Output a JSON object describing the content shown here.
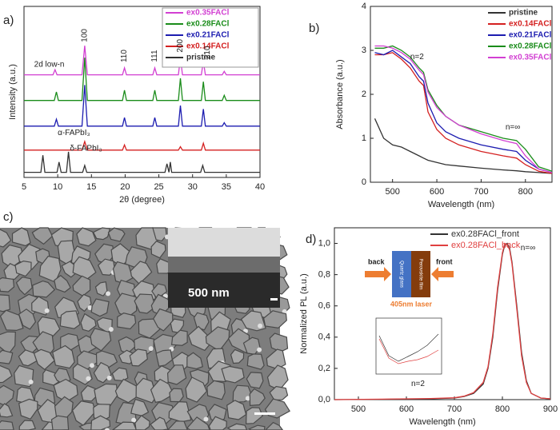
{
  "chart_data": [
    {
      "type": "line",
      "panel_label": "a)",
      "xlabel": "2θ (degree)",
      "ylabel": "Intensity (a.u.)",
      "xlim": [
        5,
        40
      ],
      "xticks": [
        5,
        10,
        15,
        20,
        25,
        30,
        35,
        40
      ],
      "ylim": [
        0,
        10
      ],
      "legend": "upper right",
      "series": [
        {
          "name": "ex0.35FACl",
          "color": "#d23fd2",
          "x": [
            5,
            9.3,
            9.6,
            9.9,
            13.6,
            14,
            14.4,
            19.6,
            19.9,
            20.2,
            24.1,
            24.4,
            24.7,
            27.9,
            28.2,
            28.5,
            31.3,
            31.6,
            31.9,
            34.4,
            34.7,
            35,
            40
          ],
          "values": [
            6,
            6,
            6.3,
            6,
            6,
            7.7,
            6,
            6,
            6.4,
            6,
            6,
            6.4,
            6,
            6,
            7,
            6,
            6,
            6.8,
            6,
            6,
            6.2,
            6,
            6
          ]
        },
        {
          "name": "ex0.28FACl",
          "color": "#1a8c1a",
          "x": [
            5,
            9.5,
            9.8,
            10.1,
            13.6,
            14,
            14.4,
            19.6,
            19.9,
            20.2,
            24.1,
            24.4,
            24.7,
            27.9,
            28.2,
            28.5,
            31.3,
            31.6,
            31.9,
            34.4,
            34.7,
            35,
            40
          ],
          "values": [
            4.5,
            4.5,
            5,
            4.5,
            4.5,
            7,
            4.5,
            4.5,
            5.1,
            4.5,
            4.5,
            5.1,
            4.5,
            4.5,
            5.8,
            4.5,
            4.5,
            5.6,
            4.5,
            4.5,
            4.8,
            4.5,
            4.5
          ]
        },
        {
          "name": "ex0.21FACl",
          "color": "#1c1cb0",
          "x": [
            5,
            9.5,
            9.8,
            10.1,
            13.6,
            14,
            14.4,
            19.6,
            19.9,
            20.2,
            24.1,
            24.4,
            24.7,
            27.9,
            28.2,
            28.5,
            31.3,
            31.6,
            31.9,
            34.4,
            34.7,
            35,
            40
          ],
          "values": [
            3,
            3,
            3.4,
            3,
            3,
            5.4,
            3,
            3,
            3.5,
            3,
            3,
            3.5,
            3,
            3,
            4.2,
            3,
            3,
            4,
            3,
            3,
            3.2,
            3,
            3
          ]
        },
        {
          "name": "ex0.14FACl",
          "color": "#d42020",
          "x": [
            5,
            13.6,
            14,
            14.4,
            19.6,
            19.9,
            20.2,
            27.9,
            28.2,
            28.5,
            31.3,
            31.6,
            31.9,
            40
          ],
          "values": [
            1.6,
            1.6,
            2.1,
            1.6,
            1.6,
            1.9,
            1.6,
            1.6,
            1.8,
            1.6,
            1.6,
            2,
            1.6,
            1.6
          ]
        },
        {
          "name": "pristine",
          "color": "#333333",
          "x": [
            5,
            7.5,
            7.8,
            8.1,
            9.9,
            10.2,
            10.5,
            11.3,
            11.6,
            11.9,
            13.7,
            14,
            14.3,
            25.9,
            26.2,
            26.5,
            26.7,
            26.9,
            31.2,
            31.5,
            31.8,
            40
          ],
          "values": [
            0.3,
            0.3,
            1.3,
            0.3,
            0.3,
            0.9,
            0.3,
            0.3,
            1.5,
            0.3,
            0.3,
            0.7,
            0.3,
            0.3,
            0.8,
            0.3,
            0.9,
            0.3,
            0.3,
            0.7,
            0.3,
            0.3
          ]
        }
      ],
      "annotations": [
        "100",
        "110",
        "111",
        "200",
        "210",
        "2d low-n",
        "α-FAPbI₃",
        "δ-FAPbI₃"
      ]
    },
    {
      "type": "line",
      "panel_label": "b)",
      "xlabel": "Wavelength (nm)",
      "ylabel": "Absorbance (a.u.)",
      "xlim": [
        450,
        860
      ],
      "xticks": [
        500,
        600,
        700,
        800
      ],
      "ylim": [
        0,
        4
      ],
      "yticks": [
        0,
        1,
        2,
        3,
        4
      ],
      "legend": "upper right",
      "x": [
        460,
        480,
        500,
        520,
        540,
        560,
        570,
        580,
        600,
        620,
        650,
        700,
        750,
        780,
        800,
        830,
        860
      ],
      "series": [
        {
          "name": "pristine",
          "color": "#333333",
          "values": [
            1.45,
            1.0,
            0.85,
            0.8,
            0.7,
            0.6,
            0.55,
            0.5,
            0.45,
            0.4,
            0.37,
            0.32,
            0.28,
            0.26,
            0.24,
            0.22,
            0.2
          ]
        },
        {
          "name": "ex0.14FACl",
          "color": "#d42020",
          "values": [
            2.9,
            2.9,
            2.95,
            2.8,
            2.6,
            2.3,
            2.2,
            1.6,
            1.2,
            1.0,
            0.85,
            0.7,
            0.6,
            0.55,
            0.4,
            0.25,
            0.2
          ]
        },
        {
          "name": "ex0.21FACl",
          "color": "#1c1cb0",
          "values": [
            2.95,
            2.9,
            3.0,
            2.85,
            2.7,
            2.4,
            2.3,
            1.8,
            1.35,
            1.15,
            1.0,
            0.85,
            0.75,
            0.7,
            0.5,
            0.3,
            0.22
          ]
        },
        {
          "name": "ex0.28FACl",
          "color": "#1a8c1a",
          "values": [
            3.05,
            3.05,
            3.1,
            3.0,
            2.85,
            2.6,
            2.5,
            2.1,
            1.75,
            1.5,
            1.3,
            1.15,
            1.0,
            0.95,
            0.75,
            0.35,
            0.25
          ]
        },
        {
          "name": "ex0.35FACl",
          "color": "#d23fd2",
          "values": [
            3.1,
            3.1,
            3.05,
            2.95,
            2.8,
            2.55,
            2.45,
            2.05,
            1.7,
            1.5,
            1.3,
            1.1,
            0.95,
            0.88,
            0.6,
            0.3,
            0.22
          ]
        }
      ],
      "annotations": [
        "n=2",
        "n=∞"
      ]
    },
    {
      "type": "line",
      "panel_label": "d)",
      "xlabel": "Wavelength (nm)",
      "ylabel": "Normalized PL (a.u.)",
      "xlim": [
        450,
        900
      ],
      "xticks": [
        500,
        600,
        700,
        800,
        900
      ],
      "ylim": [
        0,
        1.1
      ],
      "yticks": [
        {
          "value": 0,
          "label": "0,0"
        },
        {
          "value": 0.2,
          "label": "0,2"
        },
        {
          "value": 0.4,
          "label": "0,4"
        },
        {
          "value": 0.6,
          "label": "0,6"
        },
        {
          "value": 0.8,
          "label": "0,8"
        },
        {
          "value": 1,
          "label": "1,0"
        }
      ],
      "legend": "upper right",
      "x": [
        450,
        550,
        650,
        700,
        720,
        740,
        760,
        770,
        780,
        790,
        800,
        805,
        810,
        815,
        820,
        830,
        840,
        850,
        860,
        880,
        900
      ],
      "series": [
        {
          "name": "ex0.28FACl_front",
          "color": "#333333",
          "values": [
            0,
            0.002,
            0.005,
            0.01,
            0.02,
            0.04,
            0.1,
            0.2,
            0.4,
            0.7,
            0.93,
            0.99,
            1.0,
            0.97,
            0.88,
            0.6,
            0.3,
            0.12,
            0.04,
            0.01,
            0.005
          ]
        },
        {
          "name": "ex0.28FACl_back",
          "color": "#e04040",
          "values": [
            0,
            0.003,
            0.007,
            0.012,
            0.022,
            0.045,
            0.11,
            0.21,
            0.42,
            0.72,
            0.94,
            1.0,
            0.99,
            0.96,
            0.87,
            0.58,
            0.28,
            0.11,
            0.04,
            0.01,
            0.005
          ]
        }
      ],
      "annotations": [
        "n=∞",
        "n=2"
      ],
      "inset": {
        "left": "back",
        "right": "front",
        "layer1": "Quartz glass",
        "layer2": "Perovskite film",
        "laser": "405nm laser"
      }
    }
  ],
  "image": {
    "panel_label": "c)",
    "scale_label": "500 nm"
  }
}
